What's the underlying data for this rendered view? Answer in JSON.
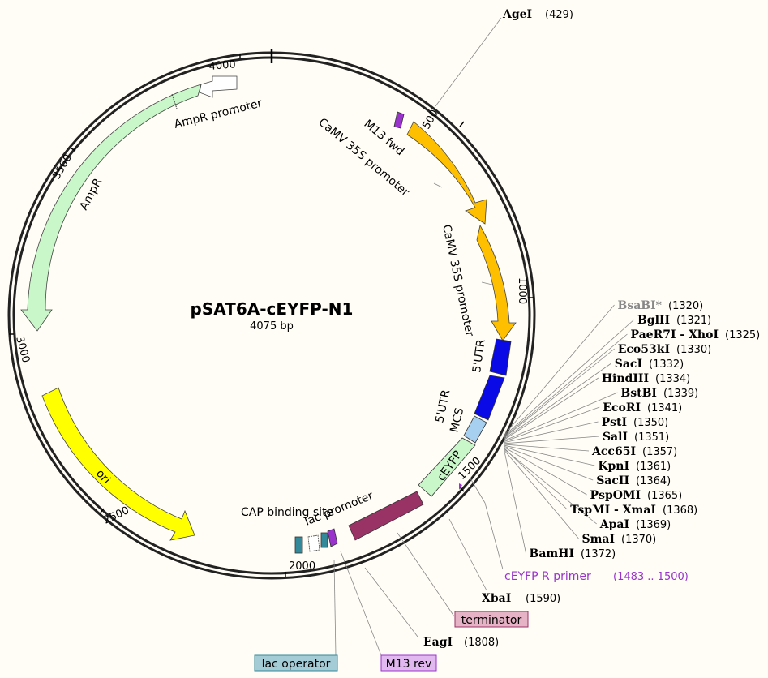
{
  "plasmid": {
    "name": "pSAT6A-cEYFP-N1",
    "length_label": "4075 bp"
  },
  "ticks": [
    "500",
    "1000",
    "1500",
    "2000",
    "2500",
    "3000",
    "3500",
    "4000"
  ],
  "features": {
    "m13fwd": "M13 fwd",
    "camv1": "CaMV 35S promoter",
    "camv2": "CaMV 35S promoter",
    "utr1": "5'UTR",
    "utr2": "5'UTR",
    "mcs": "MCS",
    "ceyfp": "cEYFP",
    "lacpromoter": "lac promoter",
    "capsite": "CAP binding site",
    "ori": "ori",
    "ampr": "AmpR",
    "amprpromoter": "AmpR promoter"
  },
  "sites": [
    {
      "name": "AgeI",
      "pos": "(429)"
    },
    {
      "name": "BsaBI*",
      "pos": "(1320)"
    },
    {
      "name": "BglII",
      "pos": "(1321)"
    },
    {
      "name": "PaeR7I - XhoI",
      "pos": "(1325)"
    },
    {
      "name": "Eco53kI",
      "pos": "(1330)"
    },
    {
      "name": "SacI",
      "pos": "(1332)"
    },
    {
      "name": "HindIII",
      "pos": "(1334)"
    },
    {
      "name": "BstBI",
      "pos": "(1339)"
    },
    {
      "name": "EcoRI",
      "pos": "(1341)"
    },
    {
      "name": "PstI",
      "pos": "(1350)"
    },
    {
      "name": "SalI",
      "pos": "(1351)"
    },
    {
      "name": "Acc65I",
      "pos": "(1357)"
    },
    {
      "name": "KpnI",
      "pos": "(1361)"
    },
    {
      "name": "SacII",
      "pos": "(1364)"
    },
    {
      "name": "PspOMI",
      "pos": "(1365)"
    },
    {
      "name": "TspMI - XmaI",
      "pos": "(1368)"
    },
    {
      "name": "ApaI",
      "pos": "(1369)"
    },
    {
      "name": "SmaI",
      "pos": "(1370)"
    },
    {
      "name": "BamHI",
      "pos": "(1372)"
    },
    {
      "name": "XbaI",
      "pos": "(1590)"
    },
    {
      "name": "EagI",
      "pos": "(1808)"
    }
  ],
  "primer": {
    "name": "cEYFP R primer",
    "range": "(1483 .. 1500)"
  },
  "boxed": {
    "terminator": "terminator",
    "lacoperator": "lac operator",
    "m13rev": "M13 rev"
  },
  "colors": {
    "promoter": "#fdbf00",
    "utr": "#0a0ae6",
    "mcs": "#a6cff0",
    "ceyfp": "#c9f7c9",
    "terminator": "#993366",
    "ori": "#ffff00",
    "ampr": "#c9f7c9",
    "primer": "#9933cc",
    "lac": "#338899"
  }
}
